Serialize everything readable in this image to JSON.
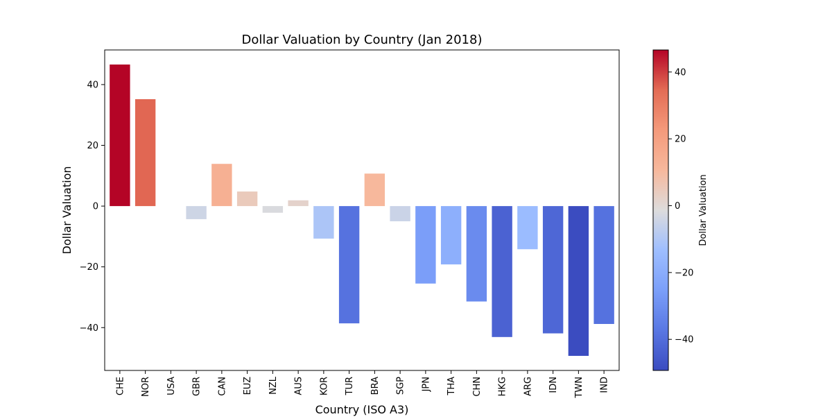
{
  "chart_data": {
    "type": "bar",
    "title": "Dollar Valuation by Country (Jan 2018)",
    "xlabel": "Country (ISO A3)",
    "ylabel": "Dollar Valuation",
    "colorbar_label": "Dollar Valuation",
    "categories": [
      "CHE",
      "NOR",
      "USA",
      "GBR",
      "CAN",
      "EUZ",
      "NZL",
      "AUS",
      "KOR",
      "TUR",
      "BRA",
      "SGP",
      "JPN",
      "THA",
      "CHN",
      "HKG",
      "ARG",
      "IDN",
      "TWN",
      "IND"
    ],
    "values": [
      46.6,
      35.2,
      0.0,
      -4.3,
      13.9,
      4.8,
      -2.2,
      1.9,
      -10.7,
      -38.6,
      10.7,
      -5.0,
      -25.5,
      -19.2,
      -31.4,
      -43.1,
      -14.2,
      -41.9,
      -49.3,
      -38.8
    ],
    "ylim": [
      -54.1,
      51.4
    ],
    "yticks": [
      -40,
      -20,
      0,
      20,
      40
    ],
    "colormap": "coolwarm",
    "color_range": [
      -49.3,
      46.6
    ],
    "colorbar_ticks": [
      -40,
      -20,
      0,
      20,
      40
    ],
    "grid": false,
    "legend": "none"
  }
}
